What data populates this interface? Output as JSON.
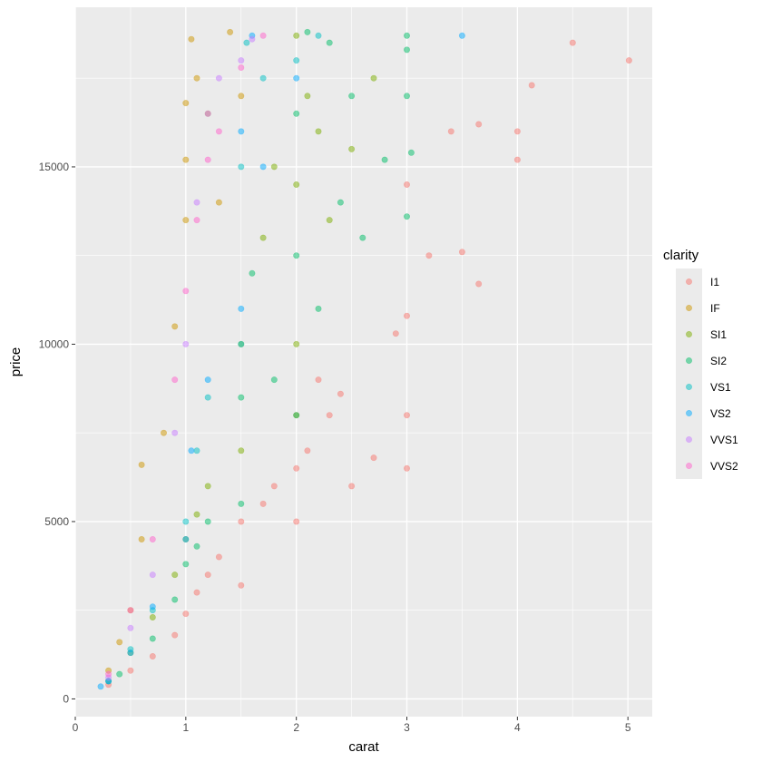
{
  "chart_data": {
    "type": "scatter",
    "xlabel": "carat",
    "ylabel": "price",
    "xlim": [
      0,
      5.22
    ],
    "ylim": [
      -500,
      19500
    ],
    "x_ticks": [
      0,
      1,
      2,
      3,
      4,
      5
    ],
    "y_ticks": [
      0,
      5000,
      10000,
      15000
    ],
    "grid": true,
    "point_alpha": 0.5,
    "legend": {
      "title": "clarity",
      "placement": "right",
      "entries": [
        "I1",
        "IF",
        "SI1",
        "SI2",
        "VS1",
        "VS2",
        "VVS1",
        "VVS2"
      ]
    },
    "colors": {
      "I1": "#F8766D",
      "IF": "#CD9600",
      "SI1": "#7CAE00",
      "SI2": "#00BE67",
      "VS1": "#00BFC4",
      "VS2": "#00A9FF",
      "VVS1": "#C77CFF",
      "VVS2": "#FF61CC"
    },
    "series": [
      {
        "name": "I1",
        "points": [
          [
            0.3,
            400
          ],
          [
            0.5,
            800
          ],
          [
            0.7,
            1200
          ],
          [
            0.9,
            1800
          ],
          [
            1.0,
            2400
          ],
          [
            1.1,
            3000
          ],
          [
            1.2,
            3500
          ],
          [
            1.3,
            4000
          ],
          [
            1.5,
            3200
          ],
          [
            1.5,
            5000
          ],
          [
            1.7,
            5500
          ],
          [
            1.8,
            6000
          ],
          [
            2.0,
            5000
          ],
          [
            2.0,
            6500
          ],
          [
            2.1,
            7000
          ],
          [
            2.2,
            9000
          ],
          [
            2.3,
            8000
          ],
          [
            2.4,
            8600
          ],
          [
            2.5,
            6000
          ],
          [
            2.7,
            6800
          ],
          [
            2.9,
            10300
          ],
          [
            3.0,
            6500
          ],
          [
            3.0,
            8000
          ],
          [
            3.0,
            10800
          ],
          [
            3.0,
            14500
          ],
          [
            3.2,
            12500
          ],
          [
            3.4,
            16000
          ],
          [
            3.5,
            12600
          ],
          [
            3.65,
            16200
          ],
          [
            3.65,
            11700
          ],
          [
            4.0,
            16000
          ],
          [
            4.0,
            15200
          ],
          [
            4.13,
            17300
          ],
          [
            4.5,
            18500
          ],
          [
            5.01,
            18000
          ]
        ]
      },
      {
        "name": "IF",
        "points": [
          [
            0.3,
            800
          ],
          [
            0.4,
            1600
          ],
          [
            0.5,
            2500
          ],
          [
            0.6,
            4500
          ],
          [
            0.6,
            6600
          ],
          [
            0.8,
            7500
          ],
          [
            0.9,
            10500
          ],
          [
            1.0,
            13500
          ],
          [
            1.0,
            15200
          ],
          [
            1.0,
            16800
          ],
          [
            1.05,
            18600
          ],
          [
            1.1,
            17500
          ],
          [
            1.2,
            16500
          ],
          [
            1.3,
            14000
          ],
          [
            1.4,
            18800
          ],
          [
            1.5,
            17000
          ],
          [
            2.0,
            8000
          ]
        ]
      },
      {
        "name": "SI1",
        "points": [
          [
            0.3,
            500
          ],
          [
            0.5,
            1300
          ],
          [
            0.7,
            2300
          ],
          [
            0.9,
            3500
          ],
          [
            1.0,
            4500
          ],
          [
            1.1,
            5200
          ],
          [
            1.2,
            6000
          ],
          [
            1.5,
            7000
          ],
          [
            1.5,
            10000
          ],
          [
            1.7,
            13000
          ],
          [
            1.8,
            15000
          ],
          [
            2.0,
            10000
          ],
          [
            2.0,
            14500
          ],
          [
            2.0,
            18700
          ],
          [
            2.1,
            17000
          ],
          [
            2.2,
            16000
          ],
          [
            2.3,
            13500
          ],
          [
            2.5,
            15500
          ],
          [
            2.7,
            17500
          ]
        ]
      },
      {
        "name": "SI2",
        "points": [
          [
            0.4,
            700
          ],
          [
            0.7,
            1700
          ],
          [
            0.9,
            2800
          ],
          [
            1.0,
            3800
          ],
          [
            1.1,
            4300
          ],
          [
            1.2,
            5000
          ],
          [
            1.5,
            5500
          ],
          [
            1.5,
            8500
          ],
          [
            1.6,
            12000
          ],
          [
            1.8,
            9000
          ],
          [
            2.0,
            8000
          ],
          [
            2.0,
            12500
          ],
          [
            2.0,
            16500
          ],
          [
            2.1,
            18800
          ],
          [
            2.2,
            11000
          ],
          [
            2.3,
            18500
          ],
          [
            2.4,
            14000
          ],
          [
            2.5,
            17000
          ],
          [
            2.6,
            13000
          ],
          [
            2.8,
            15200
          ],
          [
            3.0,
            13600
          ],
          [
            3.0,
            17000
          ],
          [
            3.0,
            18300
          ],
          [
            3.0,
            18700
          ],
          [
            3.04,
            15400
          ]
        ]
      },
      {
        "name": "VS1",
        "points": [
          [
            0.3,
            500
          ],
          [
            0.5,
            1400
          ],
          [
            0.7,
            2500
          ],
          [
            1.0,
            5000
          ],
          [
            1.1,
            7000
          ],
          [
            1.2,
            8500
          ],
          [
            1.5,
            10000
          ],
          [
            1.5,
            15000
          ],
          [
            1.55,
            18500
          ],
          [
            1.7,
            17500
          ],
          [
            2.0,
            18000
          ],
          [
            2.2,
            18700
          ]
        ]
      },
      {
        "name": "VS2",
        "points": [
          [
            0.23,
            350
          ],
          [
            0.3,
            500
          ],
          [
            0.5,
            1300
          ],
          [
            0.7,
            2600
          ],
          [
            1.0,
            4500
          ],
          [
            1.05,
            7000
          ],
          [
            1.2,
            9000
          ],
          [
            1.5,
            11000
          ],
          [
            1.5,
            16000
          ],
          [
            1.6,
            18700
          ],
          [
            1.7,
            15000
          ],
          [
            2.0,
            17500
          ],
          [
            3.5,
            18700
          ]
        ]
      },
      {
        "name": "VVS1",
        "points": [
          [
            0.3,
            600
          ],
          [
            0.5,
            2000
          ],
          [
            0.7,
            3500
          ],
          [
            0.9,
            7500
          ],
          [
            1.0,
            10000
          ],
          [
            1.1,
            14000
          ],
          [
            1.2,
            16500
          ],
          [
            1.3,
            17500
          ],
          [
            1.5,
            18000
          ],
          [
            1.6,
            18600
          ]
        ]
      },
      {
        "name": "VVS2",
        "points": [
          [
            0.3,
            700
          ],
          [
            0.5,
            2500
          ],
          [
            0.7,
            4500
          ],
          [
            0.9,
            9000
          ],
          [
            1.0,
            11500
          ],
          [
            1.1,
            13500
          ],
          [
            1.2,
            15200
          ],
          [
            1.3,
            16000
          ],
          [
            1.5,
            17800
          ],
          [
            1.7,
            18700
          ]
        ]
      }
    ]
  }
}
